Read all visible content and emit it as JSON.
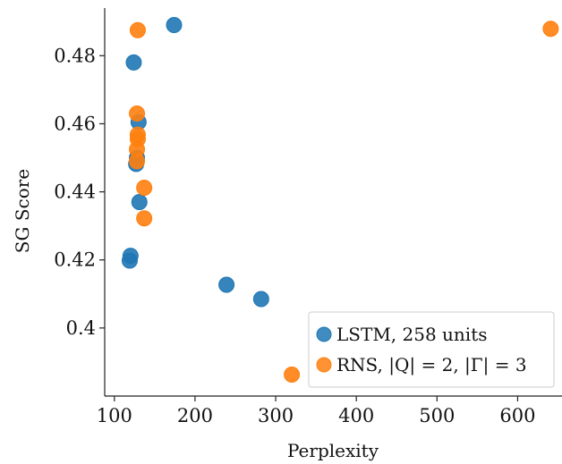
{
  "chart_data": {
    "type": "scatter",
    "title": "",
    "xlabel": "Perplexity",
    "ylabel": "SG Score",
    "xlim": [
      88,
      655
    ],
    "ylim": [
      0.38,
      0.494
    ],
    "xticks": [
      100,
      200,
      300,
      400,
      500,
      600
    ],
    "xtick_labels": [
      "100",
      "200",
      "300",
      "400",
      "500",
      "600"
    ],
    "yticks": [
      0.4,
      0.42,
      0.44,
      0.46,
      0.48
    ],
    "ytick_labels": [
      "0.4",
      "0.42",
      "0.44",
      "0.46",
      "0.48"
    ],
    "grid": false,
    "legend_position": "bottom-right",
    "series": [
      {
        "name": "LSTM, 258 units",
        "color": "#1f77b4",
        "points": [
          {
            "x": 174,
            "y": 0.489
          },
          {
            "x": 124,
            "y": 0.478
          },
          {
            "x": 130,
            "y": 0.4605
          },
          {
            "x": 128,
            "y": 0.45
          },
          {
            "x": 127,
            "y": 0.4482
          },
          {
            "x": 131,
            "y": 0.437
          },
          {
            "x": 120,
            "y": 0.4212
          },
          {
            "x": 119,
            "y": 0.4198
          },
          {
            "x": 239,
            "y": 0.4127
          },
          {
            "x": 282,
            "y": 0.4085
          }
        ]
      },
      {
        "name": "RNS, |Q| = 2, |Γ| = 3",
        "color": "#ff7f0e",
        "points": [
          {
            "x": 129,
            "y": 0.4875
          },
          {
            "x": 641,
            "y": 0.4879
          },
          {
            "x": 128,
            "y": 0.463
          },
          {
            "x": 129,
            "y": 0.4568
          },
          {
            "x": 129,
            "y": 0.4555
          },
          {
            "x": 128,
            "y": 0.4525
          },
          {
            "x": 128,
            "y": 0.449
          },
          {
            "x": 137,
            "y": 0.4412
          },
          {
            "x": 137,
            "y": 0.4322
          },
          {
            "x": 320,
            "y": 0.3863
          }
        ]
      }
    ]
  }
}
